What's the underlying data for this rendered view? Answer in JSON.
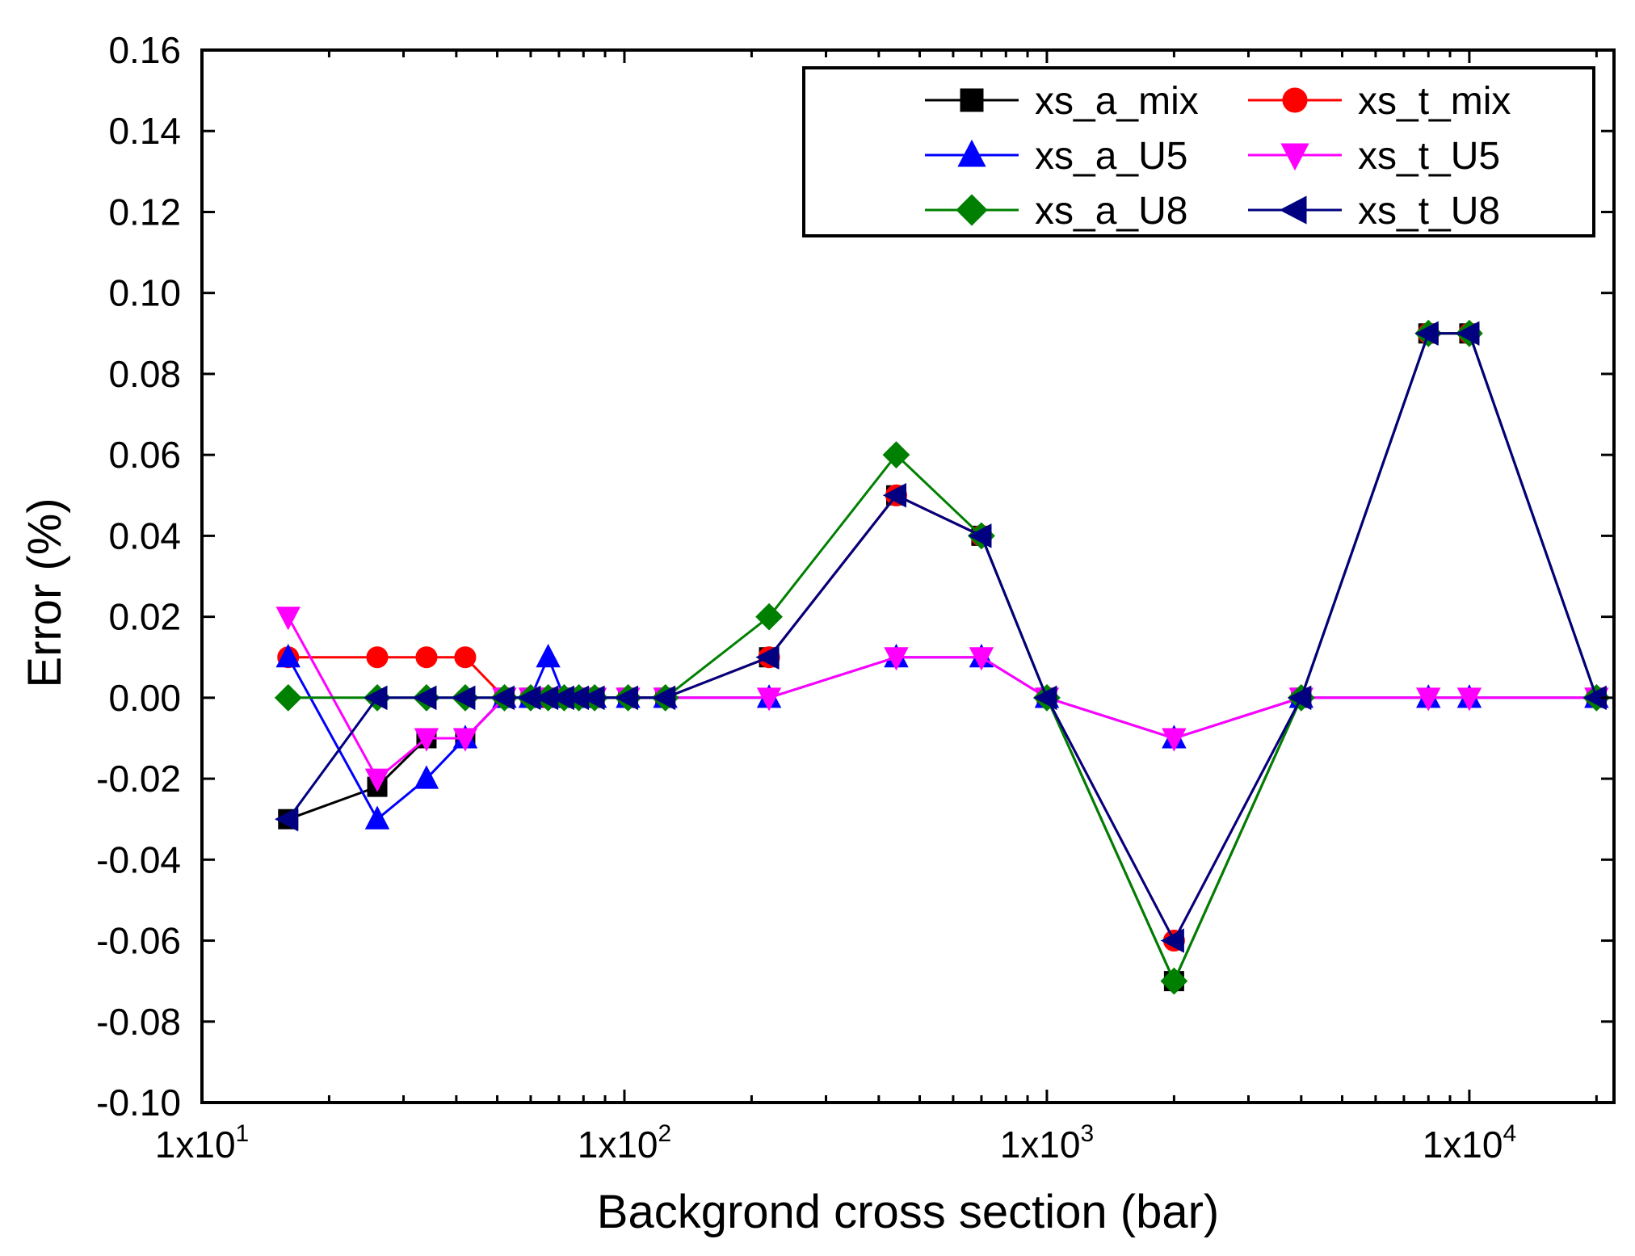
{
  "chart_data": {
    "type": "line",
    "title": "",
    "xlabel": "Backgrond cross section (bar)",
    "ylabel": "Error (%)",
    "xscale": "log",
    "xlim": [
      10,
      22000
    ],
    "ylim": [
      -0.1,
      0.16
    ],
    "x_ticks": [
      {
        "value": 10,
        "label": "1x10",
        "exp": "1"
      },
      {
        "value": 100,
        "label": "1x10",
        "exp": "2"
      },
      {
        "value": 1000,
        "label": "1x10",
        "exp": "3"
      },
      {
        "value": 10000,
        "label": "1x10",
        "exp": "4"
      }
    ],
    "y_ticks": [
      {
        "value": 0.16,
        "label": "0.16"
      },
      {
        "value": 0.14,
        "label": "0.14"
      },
      {
        "value": 0.12,
        "label": "0.12"
      },
      {
        "value": 0.1,
        "label": "0.10"
      },
      {
        "value": 0.08,
        "label": "0.08"
      },
      {
        "value": 0.06,
        "label": "0.06"
      },
      {
        "value": 0.04,
        "label": "0.04"
      },
      {
        "value": 0.02,
        "label": "0.02"
      },
      {
        "value": 0.0,
        "label": "0.00"
      },
      {
        "value": -0.02,
        "label": "-0.02"
      },
      {
        "value": -0.04,
        "label": "-0.04"
      },
      {
        "value": -0.06,
        "label": "-0.06"
      },
      {
        "value": -0.08,
        "label": "-0.08"
      },
      {
        "value": -0.1,
        "label": "-0.10"
      }
    ],
    "grid": false,
    "legend_position": "top-right",
    "x": [
      16,
      26,
      34,
      42,
      52,
      60,
      66,
      72,
      78,
      85,
      102,
      125,
      220,
      440,
      700,
      1000,
      2000,
      4000,
      8000,
      10000,
      20000
    ],
    "series": [
      {
        "name": "xs_a_mix",
        "color": "#000000",
        "marker": "square",
        "values": [
          -0.03,
          -0.022,
          -0.01,
          -0.01,
          0,
          0,
          0,
          0,
          0,
          0,
          0,
          0,
          0.01,
          0.05,
          0.04,
          0,
          -0.07,
          0,
          0.09,
          0.09,
          0
        ]
      },
      {
        "name": "xs_t_mix",
        "color": "#ff0000",
        "marker": "circle",
        "values": [
          0.01,
          0.01,
          0.01,
          0.01,
          0,
          0,
          0,
          0,
          0,
          0,
          0,
          0,
          0.01,
          0.05,
          0.04,
          0,
          -0.06,
          0,
          0.09,
          0.09,
          0
        ]
      },
      {
        "name": "xs_a_U5",
        "color": "#0000ff",
        "marker": "triangle-up",
        "values": [
          0.01,
          -0.03,
          -0.02,
          -0.01,
          0,
          0,
          0.01,
          0,
          0,
          0,
          0,
          0,
          0,
          0.01,
          0.01,
          0,
          -0.01,
          0,
          0,
          0,
          0
        ]
      },
      {
        "name": "xs_t_U5",
        "color": "#ff00ff",
        "marker": "triangle-down",
        "values": [
          0.02,
          -0.02,
          -0.01,
          -0.01,
          0,
          0,
          0,
          0,
          0,
          0,
          0,
          0,
          0,
          0.01,
          0.01,
          0,
          -0.01,
          0,
          0,
          0,
          0
        ]
      },
      {
        "name": "xs_a_U8",
        "color": "#008000",
        "marker": "diamond",
        "values": [
          0,
          0,
          0,
          0,
          0,
          0,
          0,
          0,
          0,
          0,
          0,
          0,
          0.02,
          0.06,
          0.04,
          0,
          -0.07,
          0,
          0.09,
          0.09,
          0
        ]
      },
      {
        "name": "xs_t_U8",
        "color": "#000080",
        "marker": "triangle-left",
        "values": [
          -0.03,
          0,
          0,
          0,
          0,
          0,
          0,
          0,
          0,
          0,
          0,
          0,
          0.01,
          0.05,
          0.04,
          0,
          -0.06,
          0,
          0.09,
          0.09,
          0
        ]
      }
    ]
  }
}
